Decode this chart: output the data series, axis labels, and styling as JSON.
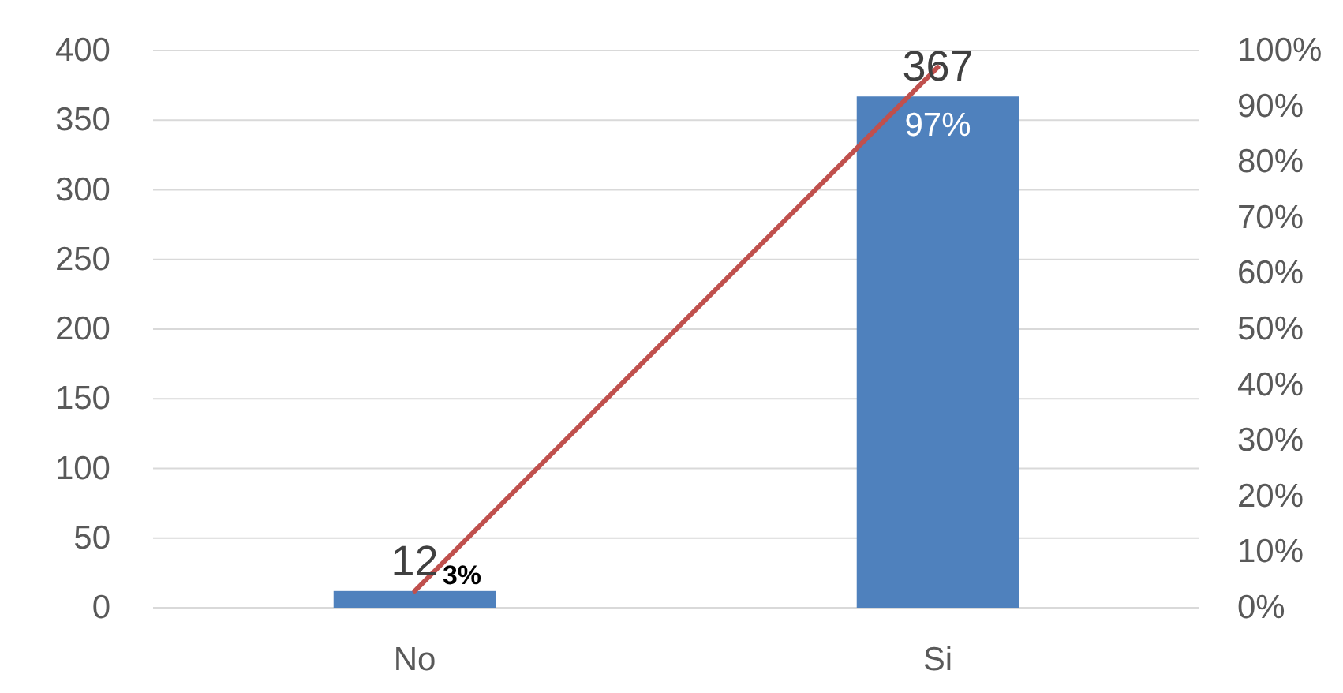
{
  "chart_data": {
    "type": "bar",
    "categories": [
      "No",
      "Si"
    ],
    "series": [
      {
        "color": "#4f81bd",
        "values": [
          12,
          367
        ],
        "value_labels": [
          "12",
          "367"
        ]
      },
      {
        "type": "line",
        "axis": "y2",
        "color": "#c0504d",
        "values": [
          3,
          97
        ],
        "value_labels": [
          "3%",
          "97%"
        ]
      }
    ],
    "ylim": [
      0,
      400
    ],
    "yticks": [
      0,
      50,
      100,
      150,
      200,
      250,
      300,
      350,
      400
    ],
    "y2lim": [
      0,
      100
    ],
    "y2ticks": [
      {
        "value": 0,
        "label": "0%"
      },
      {
        "value": 10,
        "label": "10%"
      },
      {
        "value": 20,
        "label": "20%"
      },
      {
        "value": 30,
        "label": "30%"
      },
      {
        "value": 40,
        "label": "40%"
      },
      {
        "value": 50,
        "label": "50%"
      },
      {
        "value": 60,
        "label": "60%"
      },
      {
        "value": 70,
        "label": "70%"
      },
      {
        "value": 80,
        "label": "80%"
      },
      {
        "value": 90,
        "label": "90%"
      },
      {
        "value": 100,
        "label": "100%"
      }
    ],
    "grid": "y"
  }
}
